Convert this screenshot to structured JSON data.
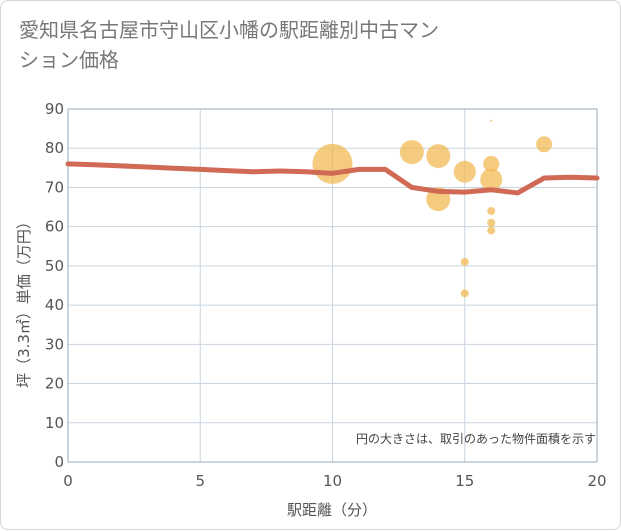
{
  "title": "愛知県名古屋市守山区小幡の駅距離別中古マンション価格",
  "chart_data": {
    "type": "scatter",
    "title": "愛知県名古屋市守山区小幡の駅距離別中古マンション価格",
    "xlabel": "駅距離（分）",
    "ylabel": "坪（3.3㎡）単価（万円）",
    "xlim": [
      0,
      20
    ],
    "ylim": [
      0,
      90
    ],
    "x_ticks": [
      0,
      5,
      10,
      15,
      20
    ],
    "y_ticks": [
      0,
      10,
      20,
      30,
      40,
      50,
      60,
      70,
      80,
      90
    ],
    "grid": true,
    "note": "円の大きさは、取引のあった物件面積を示す",
    "colors": {
      "bubble": "#f2b955",
      "line": "#d06a55",
      "grid": "#c8d4e0"
    },
    "scatter": [
      {
        "x": 10,
        "y": 76,
        "size": 20
      },
      {
        "x": 13,
        "y": 79,
        "size": 12
      },
      {
        "x": 14,
        "y": 78,
        "size": 12
      },
      {
        "x": 14,
        "y": 67,
        "size": 12
      },
      {
        "x": 15,
        "y": 74,
        "size": 11
      },
      {
        "x": 15,
        "y": 51,
        "size": 4
      },
      {
        "x": 15,
        "y": 43,
        "size": 4
      },
      {
        "x": 16,
        "y": 87,
        "size": 1
      },
      {
        "x": 16,
        "y": 76,
        "size": 8
      },
      {
        "x": 16,
        "y": 72,
        "size": 11
      },
      {
        "x": 16,
        "y": 64,
        "size": 4
      },
      {
        "x": 16,
        "y": 61,
        "size": 4
      },
      {
        "x": 16,
        "y": 59,
        "size": 4
      },
      {
        "x": 18,
        "y": 81,
        "size": 8
      }
    ],
    "line": {
      "x": [
        0,
        1,
        2,
        3,
        4,
        5,
        6,
        7,
        8,
        9,
        10,
        11,
        12,
        13,
        14,
        15,
        16,
        17,
        18,
        19,
        20
      ],
      "y": [
        76,
        75.8,
        75.5,
        75.2,
        74.9,
        74.6,
        74.3,
        74.0,
        74.2,
        74.0,
        73.6,
        74.6,
        74.6,
        70.0,
        69.0,
        68.8,
        69.4,
        68.6,
        72.4,
        72.6,
        72.4
      ]
    }
  }
}
